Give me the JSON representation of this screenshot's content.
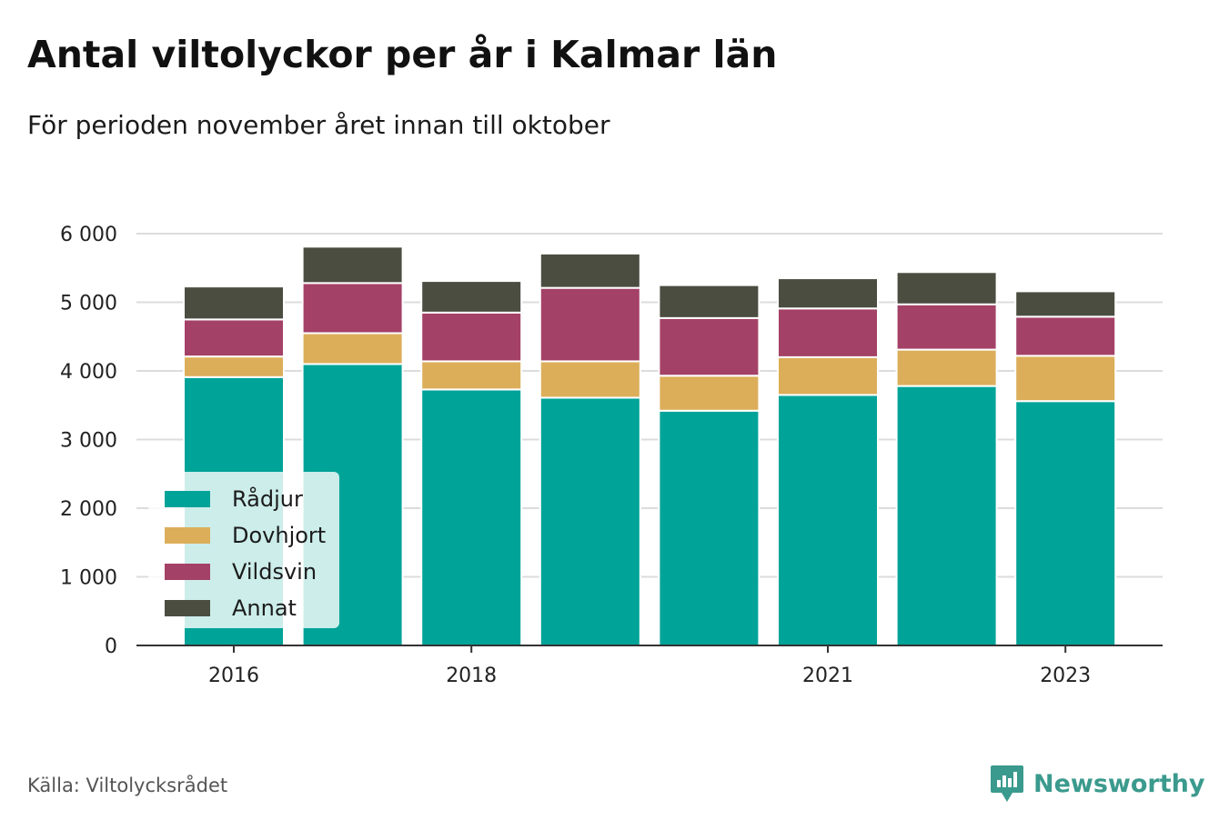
{
  "title": "Antal viltolyckor per år i Kalmar län",
  "subtitle": "För perioden november året innan till oktober",
  "source": "Källa: Viltolycksrådet",
  "brand": {
    "name": "Newsworthy",
    "icon": "newsworthy-logo-icon",
    "color": "#3a9a8d"
  },
  "colors": {
    "Rådjur": "#00a398",
    "Dovhjort": "#dcae5a",
    "Vildsvin": "#a44166",
    "Annat": "#4b4d41"
  },
  "chart_data": {
    "type": "bar",
    "stacked": true,
    "categories": [
      "2016",
      "2017",
      "2018",
      "2019",
      "2020",
      "2021",
      "2022",
      "2023"
    ],
    "x_tick_labels": [
      "2016",
      "2018",
      "2021",
      "2023"
    ],
    "y_tick_labels": [
      "0",
      "1 000",
      "2 000",
      "3 000",
      "4 000",
      "5 000",
      "6 000"
    ],
    "y_ticks": [
      0,
      1000,
      2000,
      3000,
      4000,
      5000,
      6000
    ],
    "ylim": [
      0,
      6000
    ],
    "grid": true,
    "legend_position": "bottom-left",
    "series": [
      {
        "name": "Rådjur",
        "values": [
          3910,
          4100,
          3730,
          3610,
          3420,
          3650,
          3780,
          3560
        ]
      },
      {
        "name": "Dovhjort",
        "values": [
          300,
          450,
          410,
          530,
          510,
          550,
          530,
          660
        ]
      },
      {
        "name": "Vildsvin",
        "values": [
          540,
          730,
          710,
          1070,
          840,
          710,
          660,
          570
        ]
      },
      {
        "name": "Annat",
        "values": [
          480,
          530,
          460,
          500,
          480,
          440,
          470,
          370
        ]
      }
    ]
  }
}
